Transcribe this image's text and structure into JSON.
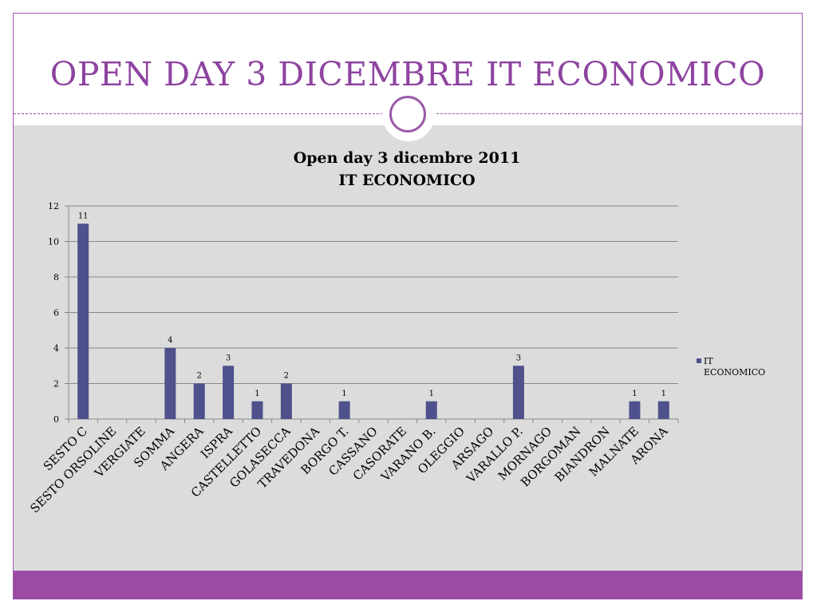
{
  "slide": {
    "title": "OPEN DAY 3 DICEMBRE IT ECONOMICO"
  },
  "colors": {
    "accent": "#9b4ba3",
    "bar": "#4f518c",
    "plot_bg": "#dcdcdc",
    "gridline": "#888888"
  },
  "chart_data": {
    "type": "bar",
    "title_line1": "Open day 3 dicembre 2011",
    "title_line2": "IT ECONOMICO",
    "categories": [
      "SESTO C",
      "SESTO ORSOLINE",
      "VERGIATE",
      "SOMMA",
      "ANGERA",
      "ISPRA",
      "CASTELLETTO",
      "GOLASECCA",
      "TRAVEDONA",
      "BORGO T.",
      "CASSANO",
      "CASORATE",
      "VARANO B.",
      "OLEGGIO",
      "ARSAGO",
      "VARALLO P.",
      "MORNAGO",
      "BORGOMAN",
      "BIANDRON",
      "MALNATE",
      "ARONA"
    ],
    "series": [
      {
        "name": "IT ECONOMICO",
        "values": [
          11,
          null,
          null,
          4,
          2,
          3,
          1,
          2,
          null,
          1,
          null,
          null,
          1,
          null,
          null,
          3,
          null,
          null,
          null,
          1,
          1
        ]
      }
    ],
    "ylim": [
      0,
      12
    ],
    "yticks": [
      0,
      2,
      4,
      6,
      8,
      10,
      12
    ],
    "grid": true,
    "legend_position": "right",
    "data_labels": true
  }
}
